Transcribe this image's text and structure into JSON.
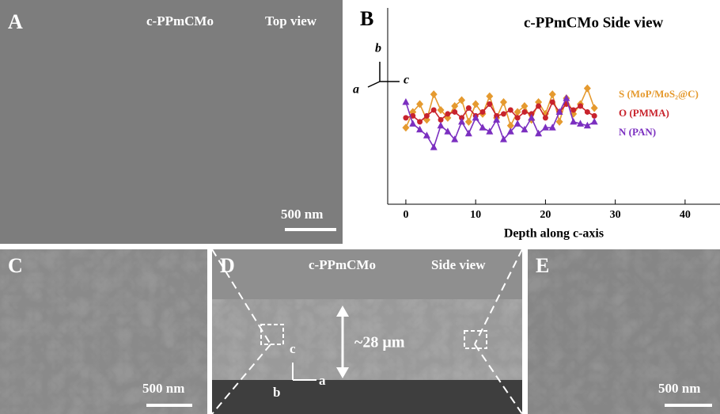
{
  "panels": {
    "A": {
      "label": "A",
      "title": "c-PPmCMo",
      "view": "Top view",
      "scale": "500 nm"
    },
    "C": {
      "label": "C",
      "scale": "500 nm"
    },
    "D": {
      "label": "D",
      "title": "c-PPmCMo",
      "view": "Side view",
      "thickness": "~28 µm",
      "axes": [
        "c",
        "b",
        "a"
      ]
    },
    "E": {
      "label": "E",
      "scale": "500 nm"
    }
  },
  "chart_data": {
    "type": "line",
    "label": "B",
    "title": "c-PPmCMo  Side view",
    "axis_labels": [
      "b",
      "a",
      "c"
    ],
    "xlabel": "Depth along c-axis",
    "xlim": [
      -2.6,
      45
    ],
    "xticks": [
      0,
      10,
      20,
      30,
      40
    ],
    "ylim": [
      0,
      100
    ],
    "x": [
      0,
      1,
      2,
      3,
      4,
      5,
      6,
      7,
      8,
      9,
      10,
      11,
      12,
      13,
      14,
      15,
      16,
      17,
      18,
      19,
      20,
      21,
      22,
      23,
      24,
      25,
      26,
      27
    ],
    "series": [
      {
        "name": "S (MoP/MoS₂@C)",
        "color": "#E59A2F",
        "marker": "diamond",
        "values": [
          39,
          47,
          51,
          43,
          56,
          48,
          44,
          50,
          53,
          42,
          51,
          46,
          55,
          44,
          52,
          40,
          47,
          50,
          43,
          52,
          46,
          56,
          42,
          54,
          46,
          51,
          59,
          49
        ]
      },
      {
        "name": "O (PMMA)",
        "color": "#C8232C",
        "marker": "circle",
        "values": [
          44,
          45,
          42,
          45,
          48,
          43,
          46,
          47,
          44,
          49,
          45,
          47,
          51,
          45,
          46,
          48,
          44,
          47,
          46,
          50,
          44,
          52,
          47,
          51,
          48,
          50,
          47,
          45
        ]
      },
      {
        "name": "N (PAN)",
        "color": "#7B2FC0",
        "marker": "triangle",
        "values": [
          52,
          41,
          38,
          35,
          29,
          40,
          37,
          33,
          42,
          36,
          44,
          39,
          37,
          43,
          33,
          37,
          41,
          38,
          44,
          36,
          39,
          39,
          47,
          54,
          42,
          41,
          40,
          42
        ]
      }
    ]
  }
}
